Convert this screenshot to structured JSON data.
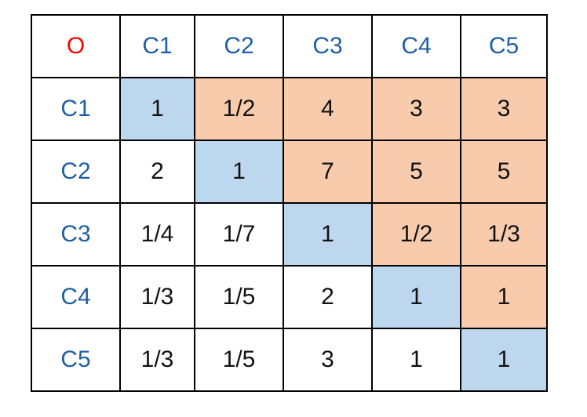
{
  "corner_label": "O",
  "corner_color": "#ff0000",
  "header_color": "#1f5fa6",
  "colors": {
    "diagonal": "#bdd7ee",
    "upper_triangle": "#f8cbad",
    "lower_triangle": "#ffffff"
  },
  "columns": [
    "C1",
    "C2",
    "C3",
    "C4",
    "C5"
  ],
  "rows": [
    {
      "label": "C1",
      "values": [
        "1",
        "1/2",
        "4",
        "3",
        "3"
      ]
    },
    {
      "label": "C2",
      "values": [
        "2",
        "1",
        "7",
        "5",
        "5"
      ]
    },
    {
      "label": "C3",
      "values": [
        "1/4",
        "1/7",
        "1",
        "1/2",
        "1/3"
      ]
    },
    {
      "label": "C4",
      "values": [
        "1/3",
        "1/5",
        "2",
        "1",
        "1"
      ]
    },
    {
      "label": "C5",
      "values": [
        "1/3",
        "1/5",
        "3",
        "1",
        "1"
      ]
    }
  ]
}
